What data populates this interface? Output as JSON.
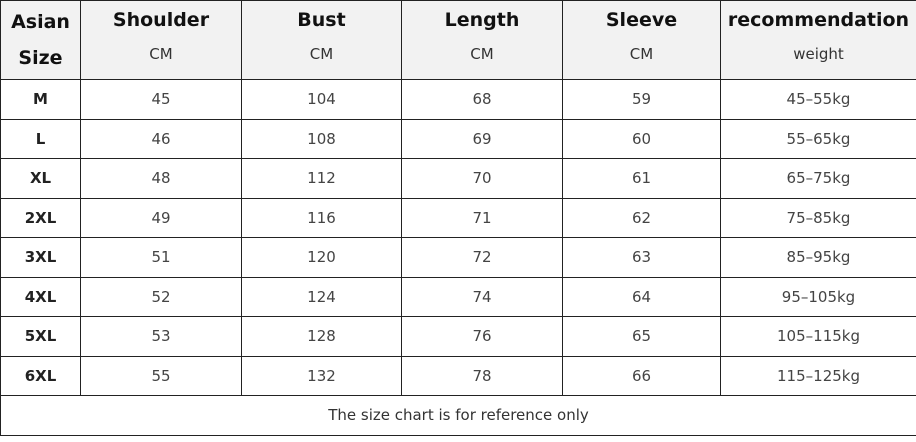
{
  "header": {
    "size_label_line1": "Asian",
    "size_label_line2": "Size",
    "columns": [
      {
        "title": "Shoulder",
        "unit": "CM"
      },
      {
        "title": "Bust",
        "unit": "CM"
      },
      {
        "title": "Length",
        "unit": "CM"
      },
      {
        "title": "Sleeve",
        "unit": "CM"
      },
      {
        "title": "recommendation",
        "unit": "weight"
      }
    ]
  },
  "rows": [
    [
      "M",
      "45",
      "104",
      "68",
      "59",
      "45–55kg"
    ],
    [
      "L",
      "46",
      "108",
      "69",
      "60",
      "55–65kg"
    ],
    [
      "XL",
      "48",
      "112",
      "70",
      "61",
      "65–75kg"
    ],
    [
      "2XL",
      "49",
      "116",
      "71",
      "62",
      "75–85kg"
    ],
    [
      "3XL",
      "51",
      "120",
      "72",
      "63",
      "85–95kg"
    ],
    [
      "4XL",
      "52",
      "124",
      "74",
      "64",
      "95–105kg"
    ],
    [
      "5XL",
      "53",
      "128",
      "76",
      "65",
      "105–115kg"
    ],
    [
      "6XL",
      "55",
      "132",
      "78",
      "66",
      "115–125kg"
    ]
  ],
  "footer": "The size chart is for reference only"
}
